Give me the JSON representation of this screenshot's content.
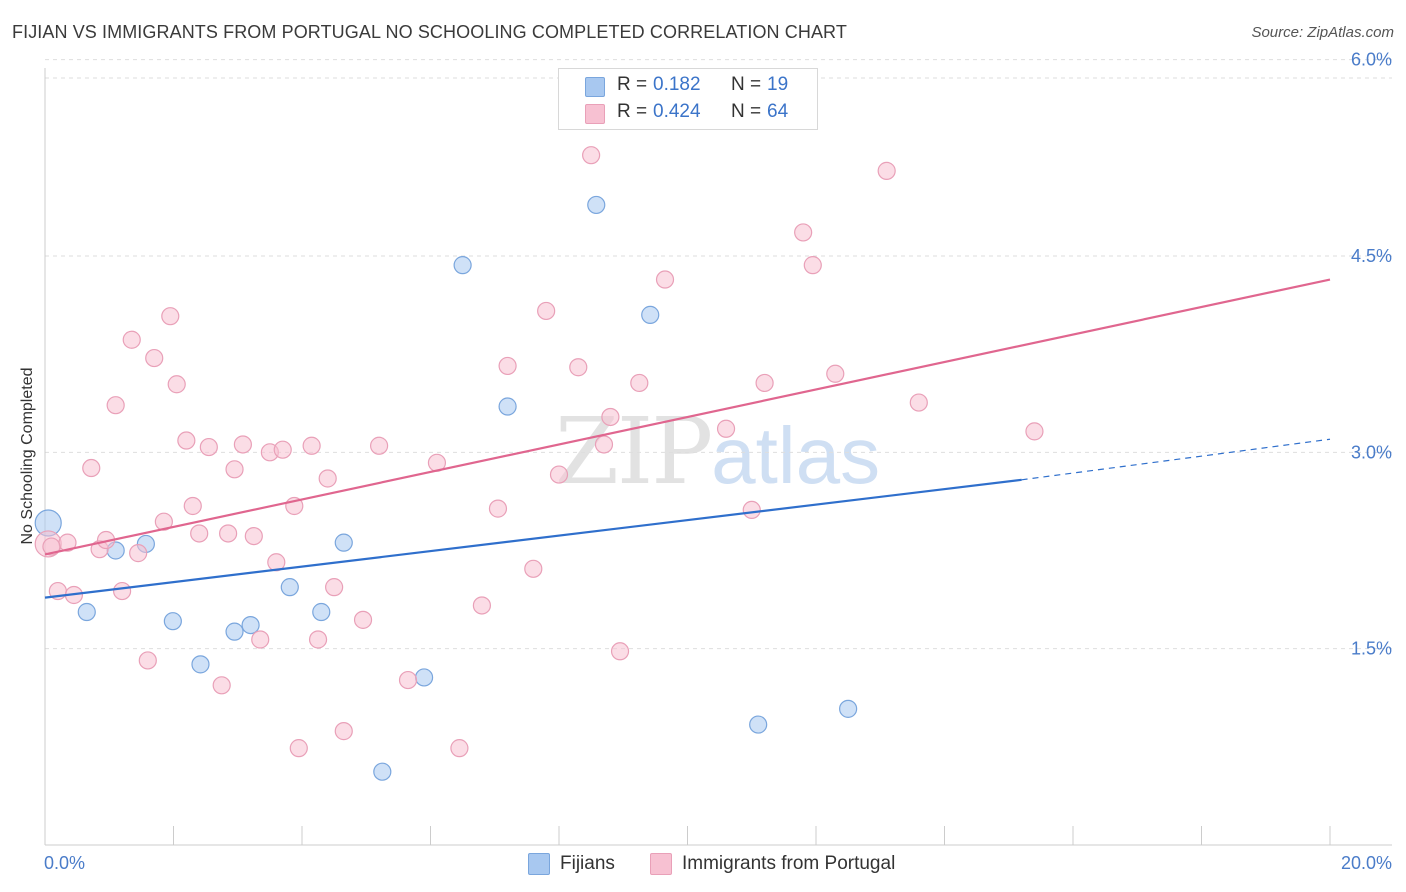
{
  "header": {
    "title": "FIJIAN VS IMMIGRANTS FROM PORTUGAL NO SCHOOLING COMPLETED CORRELATION CHART",
    "source": "Source: ZipAtlas.com"
  },
  "watermark": {
    "zip": "ZIP",
    "atlas": "atlas"
  },
  "legend": {
    "rows": [
      {
        "r_label": "R =",
        "r_value": "0.182",
        "n_label": "N =",
        "n_value": "19",
        "color": "#a8c8f0",
        "border": "#7aa6dd"
      },
      {
        "r_label": "R =",
        "r_value": "0.424",
        "n_label": "N =",
        "n_value": "64",
        "color": "#f7c1d2",
        "border": "#e9a0b8"
      }
    ]
  },
  "bottom_legend": [
    {
      "label": "Fijians",
      "color": "#a8c8f0",
      "border": "#7aa6dd"
    },
    {
      "label": "Immigrants from Portugal",
      "color": "#f7c1d2",
      "border": "#e9a0b8"
    }
  ],
  "chart_data": {
    "type": "scatter",
    "title": "FIJIAN VS IMMIGRANTS FROM PORTUGAL NO SCHOOLING COMPLETED CORRELATION CHART",
    "xlabel": "",
    "ylabel": "No Schooling Completed",
    "xlim": [
      0,
      20
    ],
    "ylim": [
      0,
      6.15
    ],
    "x_tick_labels": [
      "0.0%",
      "20.0%"
    ],
    "y_ticks": [
      1.5,
      3.0,
      4.5,
      6.0
    ],
    "y_tick_labels": [
      "1.5%",
      "3.0%",
      "4.5%",
      "6.0%"
    ],
    "grid": "horizontal dashed",
    "legend_position": "top-center",
    "series": [
      {
        "name": "Fijians",
        "color": "#a8c8f0",
        "stroke": "#7aa6dd",
        "line_color": "#2f6fcc",
        "trend": {
          "x0": 0,
          "y0": 1.89,
          "x1": 15.2,
          "y1": 2.79,
          "dash_to_x": 20,
          "dash_to_y": 3.1
        },
        "points": [
          [
            0.05,
            2.46
          ],
          [
            0.65,
            1.78
          ],
          [
            1.1,
            2.25
          ],
          [
            1.57,
            2.3
          ],
          [
            1.99,
            1.71
          ],
          [
            2.42,
            1.38
          ],
          [
            2.95,
            1.63
          ],
          [
            3.2,
            1.68
          ],
          [
            3.81,
            1.97
          ],
          [
            4.3,
            1.78
          ],
          [
            4.65,
            2.31
          ],
          [
            5.25,
            0.56
          ],
          [
            5.9,
            1.28
          ],
          [
            6.5,
            4.43
          ],
          [
            7.2,
            3.35
          ],
          [
            8.58,
            4.89
          ],
          [
            9.42,
            4.05
          ],
          [
            11.1,
            0.92
          ],
          [
            12.5,
            1.04
          ]
        ]
      },
      {
        "name": "Immigrants from Portugal",
        "color": "#f7c1d2",
        "stroke": "#e9a0b8",
        "line_color": "#e0668f",
        "trend": {
          "x0": 0,
          "y0": 2.22,
          "x1": 20,
          "y1": 4.32
        },
        "points": [
          [
            0.05,
            2.3
          ],
          [
            0.2,
            1.94
          ],
          [
            0.35,
            2.31
          ],
          [
            0.45,
            1.91
          ],
          [
            0.72,
            2.88
          ],
          [
            0.85,
            2.26
          ],
          [
            0.95,
            2.33
          ],
          [
            1.1,
            3.36
          ],
          [
            1.2,
            1.94
          ],
          [
            1.35,
            3.86
          ],
          [
            1.45,
            2.23
          ],
          [
            1.6,
            1.41
          ],
          [
            1.7,
            3.72
          ],
          [
            1.85,
            2.47
          ],
          [
            1.95,
            4.04
          ],
          [
            2.05,
            3.52
          ],
          [
            2.2,
            3.09
          ],
          [
            2.3,
            2.59
          ],
          [
            2.4,
            2.38
          ],
          [
            2.55,
            3.04
          ],
          [
            2.75,
            1.22
          ],
          [
            2.85,
            2.38
          ],
          [
            2.95,
            2.87
          ],
          [
            3.08,
            3.06
          ],
          [
            3.25,
            2.36
          ],
          [
            3.35,
            1.57
          ],
          [
            3.5,
            3.0
          ],
          [
            3.6,
            2.16
          ],
          [
            3.7,
            3.02
          ],
          [
            3.88,
            2.59
          ],
          [
            3.95,
            0.74
          ],
          [
            4.15,
            3.05
          ],
          [
            4.25,
            1.57
          ],
          [
            4.5,
            1.97
          ],
          [
            4.65,
            0.87
          ],
          [
            4.4,
            2.8
          ],
          [
            4.95,
            1.72
          ],
          [
            5.2,
            3.05
          ],
          [
            5.65,
            1.26
          ],
          [
            6.1,
            2.92
          ],
          [
            6.45,
            0.74
          ],
          [
            6.8,
            1.83
          ],
          [
            7.05,
            2.57
          ],
          [
            7.2,
            3.66
          ],
          [
            7.6,
            2.11
          ],
          [
            7.8,
            4.08
          ],
          [
            8.0,
            2.83
          ],
          [
            8.3,
            3.65
          ],
          [
            8.5,
            5.27
          ],
          [
            8.7,
            3.06
          ],
          [
            8.8,
            3.27
          ],
          [
            8.95,
            1.48
          ],
          [
            9.25,
            3.53
          ],
          [
            9.65,
            4.32
          ],
          [
            10.6,
            3.18
          ],
          [
            11.0,
            2.56
          ],
          [
            11.2,
            3.53
          ],
          [
            11.8,
            4.68
          ],
          [
            11.95,
            4.43
          ],
          [
            12.3,
            3.6
          ],
          [
            13.1,
            5.15
          ],
          [
            13.6,
            3.38
          ],
          [
            15.4,
            3.16
          ],
          [
            0.1,
            2.28
          ]
        ]
      }
    ]
  }
}
